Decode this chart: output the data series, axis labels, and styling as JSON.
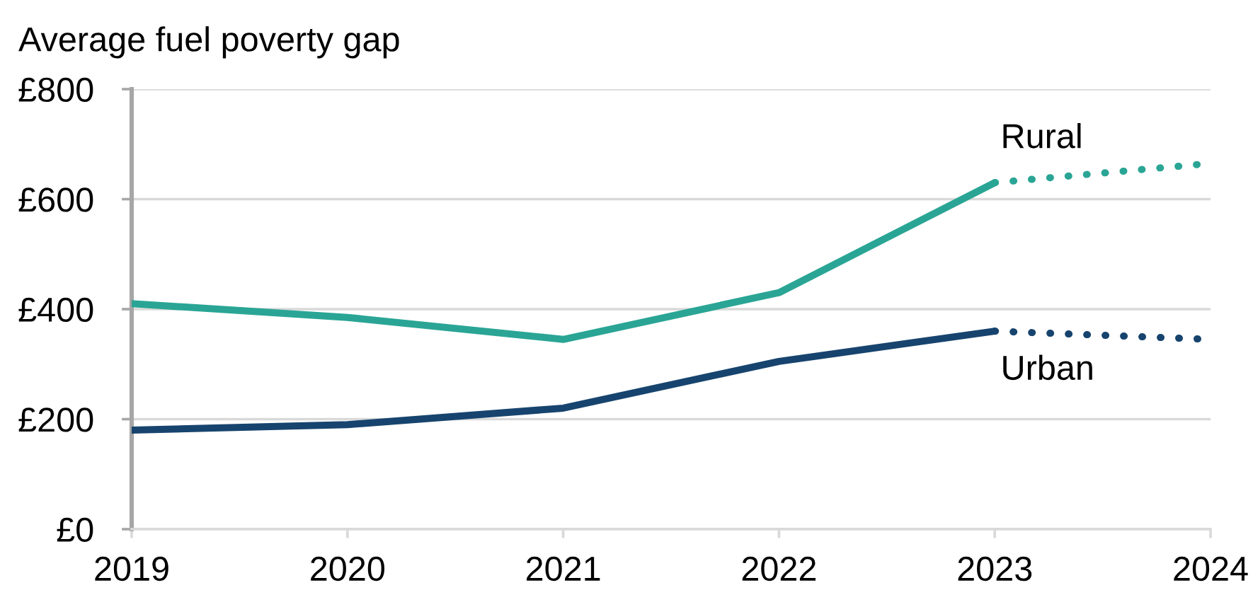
{
  "chart_data": {
    "type": "line",
    "ylabel": "Average fuel poverty gap",
    "x": [
      2019,
      2020,
      2021,
      2022,
      2023,
      2024
    ],
    "series": [
      {
        "name": "Rural",
        "color": "#2aa595",
        "line_style": "solid",
        "values": [
          410,
          385,
          345,
          430,
          630,
          null
        ]
      },
      {
        "color": "#2aa595",
        "line_style": "dotted",
        "values": [
          null,
          null,
          null,
          null,
          630,
          665
        ]
      },
      {
        "name": "Urban",
        "color": "#17446e",
        "line_style": "solid",
        "values": [
          180,
          190,
          220,
          305,
          360,
          null
        ]
      },
      {
        "color": "#17446e",
        "line_style": "dotted",
        "values": [
          null,
          null,
          null,
          null,
          360,
          345
        ]
      }
    ],
    "xlim": [
      2019,
      2024
    ],
    "xticks": [
      2019,
      2020,
      2021,
      2022,
      2023,
      2024
    ],
    "ylim": [
      0,
      800
    ],
    "yticks": [
      {
        "value": 0,
        "label": "£0"
      },
      {
        "value": 200,
        "label": "£200"
      },
      {
        "value": 400,
        "label": "£400"
      },
      {
        "value": 600,
        "label": "£600"
      },
      {
        "value": 800,
        "label": "£800"
      }
    ],
    "grid": "y"
  }
}
